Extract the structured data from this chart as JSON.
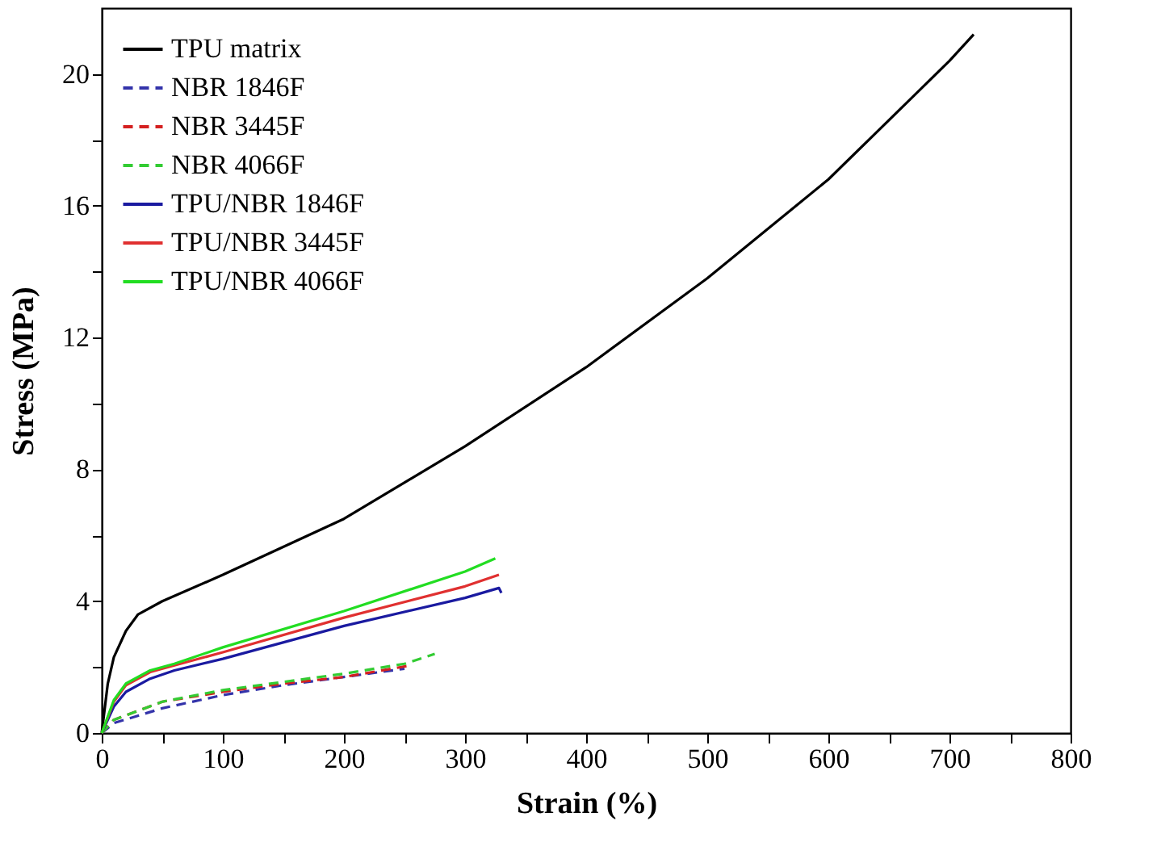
{
  "chart_data": {
    "type": "line",
    "xlabel": "Strain (%)",
    "ylabel": "Stress (MPa)",
    "xlim": [
      0,
      800
    ],
    "ylim": [
      0,
      22
    ],
    "xticks": [
      0,
      {
        "value": 50,
        "label": null
      },
      100,
      {
        "value": 150,
        "label": null
      },
      200,
      {
        "value": 250,
        "label": null
      },
      300,
      {
        "value": 350,
        "label": null
      },
      400,
      {
        "value": 450,
        "label": null
      },
      500,
      {
        "value": 550,
        "label": null
      },
      600,
      {
        "value": 650,
        "label": null
      },
      700,
      {
        "value": 750,
        "label": null
      },
      800
    ],
    "yticks": [
      0,
      {
        "value": 2,
        "label": null
      },
      4,
      {
        "value": 6,
        "label": null
      },
      8,
      {
        "value": 10,
        "label": null
      },
      12,
      {
        "value": 14,
        "label": null
      },
      16,
      {
        "value": 18,
        "label": null
      },
      20
    ],
    "grid": false,
    "legend": "top left",
    "marker": "none",
    "series": [
      {
        "name": "TPU matrix",
        "color": "#000000",
        "line_style": "solid",
        "x": [
          0,
          5,
          10,
          20,
          30,
          50,
          100,
          200,
          300,
          400,
          500,
          600,
          650,
          700,
          720
        ],
        "values": [
          0,
          1.5,
          2.3,
          3.1,
          3.6,
          4.0,
          4.8,
          6.5,
          8.7,
          11.1,
          13.8,
          16.8,
          18.6,
          20.4,
          21.2
        ]
      },
      {
        "name": "NBR 1846F",
        "color": "#3333aa",
        "line_style": "dashed",
        "x": [
          0,
          10,
          50,
          100,
          150,
          200,
          250
        ],
        "values": [
          0,
          0.3,
          0.75,
          1.15,
          1.45,
          1.7,
          1.95
        ]
      },
      {
        "name": "NBR 3445F",
        "color": "#d42020",
        "line_style": "dashed",
        "x": [
          0,
          10,
          50,
          100,
          150,
          200,
          255
        ],
        "values": [
          0,
          0.4,
          0.95,
          1.25,
          1.5,
          1.7,
          2.05
        ]
      },
      {
        "name": "NBR 4066F",
        "color": "#33cc33",
        "line_style": "dashed",
        "x": [
          0,
          10,
          50,
          100,
          150,
          200,
          250,
          275
        ],
        "values": [
          0,
          0.4,
          0.95,
          1.3,
          1.55,
          1.8,
          2.1,
          2.4
        ]
      },
      {
        "name": "TPU/NBR 1846F",
        "color": "#1a1aa0",
        "line_style": "solid",
        "x": [
          0,
          10,
          20,
          40,
          60,
          100,
          200,
          300,
          328,
          330
        ],
        "values": [
          0,
          0.8,
          1.25,
          1.65,
          1.9,
          2.25,
          3.25,
          4.1,
          4.4,
          4.25
        ]
      },
      {
        "name": "TPU/NBR 3445F",
        "color": "#e03030",
        "line_style": "solid",
        "x": [
          0,
          10,
          20,
          40,
          60,
          100,
          200,
          300,
          328
        ],
        "values": [
          0,
          0.95,
          1.45,
          1.85,
          2.05,
          2.45,
          3.5,
          4.45,
          4.8
        ]
      },
      {
        "name": "TPU/NBR 4066F",
        "color": "#22dd22",
        "line_style": "solid",
        "x": [
          0,
          10,
          20,
          40,
          60,
          100,
          200,
          300,
          325
        ],
        "values": [
          0,
          1.0,
          1.5,
          1.9,
          2.1,
          2.6,
          3.7,
          4.9,
          5.3
        ]
      }
    ]
  }
}
